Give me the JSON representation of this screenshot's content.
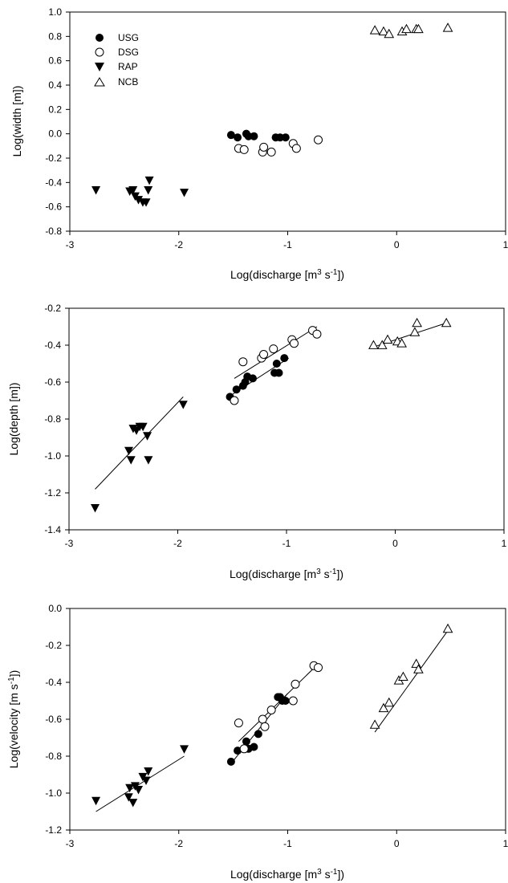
{
  "chart_data": [
    {
      "type": "scatter",
      "xlabel_base": "Log(discharge [m",
      "xlabel_sup1": "3",
      "xlabel_mid": " s",
      "xlabel_sup2": "-1",
      "xlabel_end": "])",
      "ylabel": "Log(width [m])",
      "xlim": [
        -3,
        1
      ],
      "ylim": [
        -0.8,
        1.0
      ],
      "xticks": [
        -3,
        -2,
        -1,
        0,
        1
      ],
      "xtick_labels": [
        "-3",
        "-2",
        "-1",
        "0",
        "1"
      ],
      "yticks": [
        -0.8,
        -0.6,
        -0.4,
        -0.2,
        0.0,
        0.2,
        0.4,
        0.6,
        0.8,
        1.0
      ],
      "ytick_labels": [
        "-0.8",
        "-0.6",
        "-0.4",
        "-0.2",
        "0.0",
        "0.2",
        "0.4",
        "0.6",
        "0.8",
        "1.0"
      ],
      "legend": {
        "placement": "top-left"
      },
      "series": [
        {
          "name": "USG",
          "marker": "filled-circle",
          "x": [
            -1.52,
            -1.46,
            -1.38,
            -1.36,
            -1.31,
            -1.11,
            -1.07,
            -1.02
          ],
          "y": [
            -0.01,
            -0.03,
            0.0,
            -0.02,
            -0.02,
            -0.03,
            -0.03,
            -0.03
          ]
        },
        {
          "name": "DSG",
          "marker": "open-circle",
          "x": [
            -1.45,
            -1.4,
            -1.23,
            -1.22,
            -1.15,
            -0.95,
            -0.92,
            -0.72
          ],
          "y": [
            -0.12,
            -0.13,
            -0.15,
            -0.11,
            -0.15,
            -0.08,
            -0.12,
            -0.05
          ]
        },
        {
          "name": "RAP",
          "marker": "filled-triangle-down",
          "x": [
            -2.76,
            -2.45,
            -2.42,
            -2.4,
            -2.37,
            -2.33,
            -2.3,
            -2.28,
            -2.27,
            -1.95
          ],
          "y": [
            -0.46,
            -0.47,
            -0.46,
            -0.51,
            -0.54,
            -0.56,
            -0.56,
            -0.46,
            -0.38,
            -0.48
          ]
        },
        {
          "name": "NCB",
          "marker": "open-triangle-up",
          "x": [
            -0.2,
            -0.12,
            -0.07,
            0.05,
            0.09,
            0.18,
            0.2,
            0.47
          ],
          "y": [
            0.85,
            0.84,
            0.82,
            0.84,
            0.86,
            0.86,
            0.86,
            0.87
          ]
        }
      ]
    },
    {
      "type": "scatter",
      "xlabel_base": "Log(discharge [m",
      "xlabel_sup1": "3",
      "xlabel_mid": " s",
      "xlabel_sup2": "-1",
      "xlabel_end": "])",
      "ylabel": "Log(depth [m])",
      "xlim": [
        -3,
        1
      ],
      "ylim": [
        -1.4,
        -0.2
      ],
      "xticks": [
        -3,
        -2,
        -1,
        0,
        1
      ],
      "xtick_labels": [
        "-3",
        "-2",
        "-1",
        "0",
        "1"
      ],
      "yticks": [
        -1.4,
        -1.2,
        -1.0,
        -0.8,
        -0.6,
        -0.4,
        -0.2
      ],
      "ytick_labels": [
        "-1.4",
        "-1.2",
        "-1.0",
        "-0.8",
        "-0.6",
        "-0.4",
        "-0.2"
      ],
      "series": [
        {
          "name": "USG",
          "marker": "filled-circle",
          "x": [
            -1.52,
            -1.46,
            -1.4,
            -1.38,
            -1.36,
            -1.31,
            -1.11,
            -1.09,
            -1.07,
            -1.02
          ],
          "y": [
            -0.68,
            -0.64,
            -0.62,
            -0.6,
            -0.57,
            -0.58,
            -0.55,
            -0.5,
            -0.55,
            -0.47
          ],
          "fit": [
            [
              -1.52,
              -0.675
            ],
            [
              -0.98,
              -0.47
            ]
          ]
        },
        {
          "name": "DSG",
          "marker": "open-circle",
          "x": [
            -1.48,
            -1.4,
            -1.23,
            -1.21,
            -1.12,
            -0.95,
            -0.93,
            -0.76,
            -0.72
          ],
          "y": [
            -0.7,
            -0.49,
            -0.47,
            -0.45,
            -0.42,
            -0.37,
            -0.39,
            -0.32,
            -0.34
          ],
          "fit": [
            [
              -1.48,
              -0.58
            ],
            [
              -0.72,
              -0.3
            ]
          ]
        },
        {
          "name": "RAP",
          "marker": "filled-triangle-down",
          "x": [
            -2.76,
            -2.45,
            -2.43,
            -2.41,
            -2.38,
            -2.35,
            -2.32,
            -2.28,
            -2.27,
            -1.95
          ],
          "y": [
            -1.28,
            -0.97,
            -1.02,
            -0.85,
            -0.86,
            -0.84,
            -0.84,
            -0.89,
            -1.02,
            -0.72
          ],
          "fit": [
            [
              -2.76,
              -1.18
            ],
            [
              -1.95,
              -0.68
            ]
          ]
        },
        {
          "name": "NCB",
          "marker": "open-triangle-up",
          "x": [
            -0.2,
            -0.12,
            -0.07,
            0.02,
            0.06,
            0.18,
            0.2,
            0.47
          ],
          "y": [
            -0.4,
            -0.4,
            -0.37,
            -0.38,
            -0.39,
            -0.33,
            -0.28,
            -0.28
          ],
          "fit": [
            [
              -0.2,
              -0.41
            ],
            [
              0.47,
              -0.28
            ]
          ]
        }
      ]
    },
    {
      "type": "scatter",
      "xlabel_base": "Log(discharge [m",
      "xlabel_sup1": "3",
      "xlabel_mid": " s",
      "xlabel_sup2": "-1",
      "xlabel_end": "])",
      "ylabel_base": "Log(velocity [m s",
      "ylabel_sup": "-1",
      "ylabel_end": "])",
      "xlim": [
        -3,
        1
      ],
      "ylim": [
        -1.2,
        0.0
      ],
      "xticks": [
        -3,
        -2,
        -1,
        0,
        1
      ],
      "xtick_labels": [
        "-3",
        "-2",
        "-1",
        "0",
        "1"
      ],
      "yticks": [
        -1.2,
        -1.0,
        -0.8,
        -0.6,
        -0.4,
        -0.2,
        0.0
      ],
      "ytick_labels": [
        "-1.2",
        "-1.0",
        "-0.8",
        "-0.6",
        "-0.4",
        "-0.2",
        "0.0"
      ],
      "series": [
        {
          "name": "USG",
          "marker": "filled-circle",
          "x": [
            -1.52,
            -1.46,
            -1.38,
            -1.36,
            -1.31,
            -1.27,
            -1.09,
            -1.07,
            -1.05,
            -1.02
          ],
          "y": [
            -0.83,
            -0.77,
            -0.72,
            -0.76,
            -0.75,
            -0.68,
            -0.48,
            -0.48,
            -0.5,
            -0.5
          ],
          "fit": [
            [
              -1.52,
              -0.84
            ],
            [
              -1.0,
              -0.46
            ]
          ]
        },
        {
          "name": "DSG",
          "marker": "open-circle",
          "x": [
            -1.45,
            -1.4,
            -1.23,
            -1.21,
            -1.15,
            -0.95,
            -0.93,
            -0.76,
            -0.72
          ],
          "y": [
            -0.62,
            -0.76,
            -0.6,
            -0.64,
            -0.55,
            -0.5,
            -0.41,
            -0.31,
            -0.32
          ],
          "fit": [
            [
              -1.45,
              -0.72
            ],
            [
              -0.72,
              -0.3
            ]
          ]
        },
        {
          "name": "RAP",
          "marker": "filled-triangle-down",
          "x": [
            -2.76,
            -2.46,
            -2.45,
            -2.42,
            -2.4,
            -2.37,
            -2.33,
            -2.3,
            -2.28,
            -1.95
          ],
          "y": [
            -1.04,
            -1.02,
            -0.97,
            -1.05,
            -0.96,
            -0.98,
            -0.91,
            -0.93,
            -0.88,
            -0.76
          ],
          "fit": [
            [
              -2.76,
              -1.1
            ],
            [
              -1.95,
              -0.8
            ]
          ]
        },
        {
          "name": "NCB",
          "marker": "open-triangle-up",
          "x": [
            -0.2,
            -0.12,
            -0.07,
            0.02,
            0.06,
            0.18,
            0.2,
            0.47
          ],
          "y": [
            -0.63,
            -0.54,
            -0.51,
            -0.39,
            -0.37,
            -0.3,
            -0.33,
            -0.11
          ],
          "fit": [
            [
              -0.2,
              -0.67
            ],
            [
              0.47,
              -0.12
            ]
          ]
        }
      ]
    }
  ]
}
